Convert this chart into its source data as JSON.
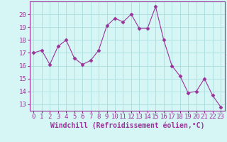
{
  "x": [
    0,
    1,
    2,
    3,
    4,
    5,
    6,
    7,
    8,
    9,
    10,
    11,
    12,
    13,
    14,
    15,
    16,
    17,
    18,
    19,
    20,
    21,
    22,
    23
  ],
  "y": [
    17.0,
    17.2,
    16.1,
    17.5,
    18.0,
    16.6,
    16.1,
    16.4,
    17.2,
    19.1,
    19.7,
    19.4,
    20.0,
    18.9,
    18.9,
    20.6,
    18.0,
    16.0,
    15.2,
    13.9,
    14.0,
    15.0,
    13.7,
    12.8
  ],
  "line_color": "#993399",
  "marker": "D",
  "marker_size": 2.5,
  "bg_color": "#d6f5f5",
  "grid_color": "#aadddd",
  "axis_color": "#993399",
  "xlabel": "Windchill (Refroidissement éolien,°C)",
  "ylabel": "",
  "title": "",
  "xlim": [
    -0.5,
    23.5
  ],
  "ylim": [
    12.5,
    21.0
  ],
  "yticks": [
    13,
    14,
    15,
    16,
    17,
    18,
    19,
    20
  ],
  "xticks": [
    0,
    1,
    2,
    3,
    4,
    5,
    6,
    7,
    8,
    9,
    10,
    11,
    12,
    13,
    14,
    15,
    16,
    17,
    18,
    19,
    20,
    21,
    22,
    23
  ],
  "font_size": 6.5,
  "label_font_size": 7.0
}
